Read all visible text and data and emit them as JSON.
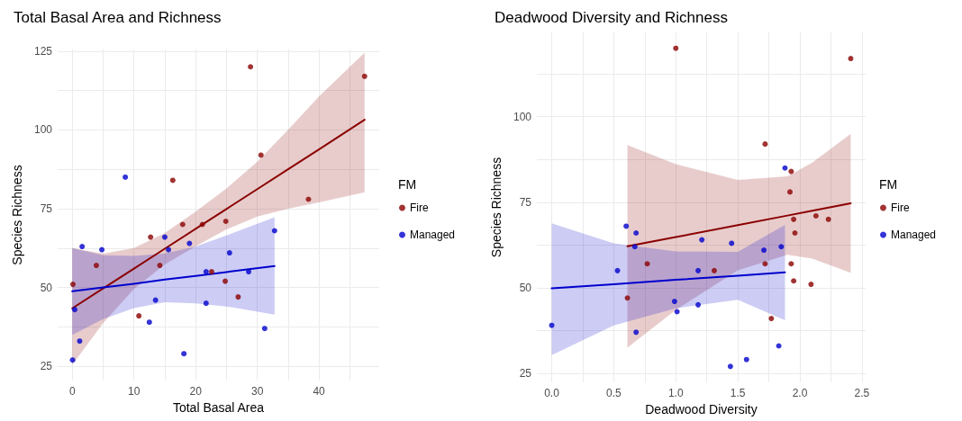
{
  "chart_data": [
    {
      "type": "scatter",
      "title": "Total Basal Area and Richness",
      "xlabel": "Total Basal Area",
      "ylabel": "Species Richness",
      "legend_title": "FM",
      "legend": "right",
      "grid": true,
      "marker": "circle",
      "xlim": [
        -2.37,
        49.77
      ],
      "ylim": [
        20.5,
        125.5
      ],
      "xticks": [
        0,
        {
          "value": 5,
          "label": null
        },
        10,
        {
          "value": 15,
          "label": null
        },
        20,
        {
          "value": 25,
          "label": null
        },
        30,
        {
          "value": 35,
          "label": null
        },
        40,
        {
          "value": 45,
          "label": null
        }
      ],
      "yticks": [
        25,
        {
          "value": 37.5,
          "label": null
        },
        50,
        {
          "value": 62.5,
          "label": null
        },
        75,
        {
          "value": 87.5,
          "label": null
        },
        100,
        {
          "value": 112.5,
          "label": null
        },
        125
      ],
      "series": [
        {
          "name": "Fire",
          "color": "#8b0000",
          "x": [
            0.1,
            3.9,
            12.7,
            14.2,
            16.3,
            17.9,
            21.1,
            22.6,
            24.9,
            24.8,
            26.9,
            28.9,
            30.6,
            38.3,
            47.4,
            10.8
          ],
          "values": [
            51,
            57,
            66,
            57,
            84,
            70,
            70,
            55,
            71,
            52,
            47,
            120,
            92,
            78,
            117,
            41
          ]
        },
        {
          "name": "Managed",
          "color": "#0000cd",
          "x": [
            0.05,
            0.4,
            1.2,
            1.6,
            4.8,
            8.6,
            12.5,
            13.5,
            15.0,
            15.6,
            18.1,
            19.0,
            21.7,
            21.7,
            25.5,
            28.6,
            31.2,
            32.8
          ],
          "values": [
            27,
            43,
            33,
            63,
            62,
            85,
            39,
            46,
            66,
            62,
            29,
            64,
            55,
            45,
            61,
            55,
            37,
            68
          ]
        },
        {
          "type": "line",
          "marker": "none",
          "color": "#8b0000",
          "x": [
            0,
            5,
            10,
            15,
            20,
            25,
            30,
            35,
            40,
            47.4
          ],
          "values": [
            43.4,
            49.7,
            56,
            62.3,
            68.6,
            74.9,
            81.2,
            87.5,
            93.8,
            103.2
          ],
          "lower": [
            25.5,
            38.7,
            49.5,
            57.3,
            63.1,
            68.4,
            72.5,
            75,
            77,
            80.2
          ],
          "upper": [
            62.5,
            60.7,
            62.5,
            67.3,
            74.1,
            81.4,
            89.9,
            100,
            110.6,
            124.5
          ]
        },
        {
          "type": "line",
          "marker": "none",
          "color": "#0000cd",
          "x": [
            0,
            5,
            10,
            15,
            20,
            25,
            32.8
          ],
          "values": [
            48.8,
            50,
            51.2,
            52.5,
            53.7,
            54.9,
            56.8
          ],
          "lower": [
            35,
            40,
            43.5,
            45.3,
            45,
            44,
            41.4
          ],
          "upper": [
            62.5,
            60.2,
            60,
            60.8,
            63,
            66.5,
            72.3
          ]
        }
      ]
    },
    {
      "type": "scatter",
      "title": "Deadwood Diversity and Richness",
      "xlabel": "Deadwood Diversity",
      "ylabel": "Species Richness",
      "legend_title": "FM",
      "legend": "right",
      "grid": true,
      "marker": "circle",
      "xlim": [
        -0.12,
        2.53
      ],
      "ylim": [
        22.35,
        124.65
      ],
      "xticks": [
        {
          "value": 0,
          "label": "0.0"
        },
        {
          "value": 0.25,
          "label": null
        },
        {
          "value": 0.5,
          "label": "0.5"
        },
        {
          "value": 0.75,
          "label": null
        },
        {
          "value": 1,
          "label": "1.0"
        },
        {
          "value": 1.25,
          "label": null
        },
        {
          "value": 1.5,
          "label": "1.5"
        },
        {
          "value": 1.75,
          "label": null
        },
        {
          "value": 2,
          "label": "2.0"
        },
        {
          "value": 2.25,
          "label": null
        },
        {
          "value": 2.5,
          "label": "2.5"
        }
      ],
      "yticks": [
        25,
        {
          "value": 37.5,
          "label": null
        },
        50,
        {
          "value": 62.5,
          "label": null
        },
        75,
        {
          "value": 87.5,
          "label": null
        },
        100,
        {
          "value": 112.5,
          "label": null
        }
      ],
      "series": [
        {
          "name": "Fire",
          "color": "#8b0000",
          "x": [
            1.0,
            2.41,
            1.72,
            1.93,
            1.92,
            1.95,
            2.13,
            2.23,
            1.96,
            0.77,
            1.31,
            1.72,
            1.93,
            1.95,
            2.09,
            0.61,
            1.77
          ],
          "values": [
            120,
            117,
            92,
            84,
            78,
            70,
            71,
            70,
            66,
            57,
            55,
            57,
            57,
            52,
            51,
            47,
            41
          ]
        },
        {
          "name": "Managed",
          "color": "#0000cd",
          "x": [
            0.0,
            0.53,
            0.6,
            0.68,
            0.67,
            0.68,
            0.99,
            1.01,
            1.18,
            1.18,
            1.21,
            1.45,
            1.71,
            1.85,
            1.88,
            1.83,
            1.57,
            1.44
          ],
          "values": [
            39,
            55,
            68,
            66,
            62,
            37,
            46,
            43,
            45,
            55,
            64,
            63,
            61,
            62,
            85,
            33,
            29,
            27
          ]
        },
        {
          "type": "line",
          "marker": "none",
          "color": "#8b0000",
          "x": [
            0.61,
            1.0,
            1.5,
            1.9,
            2.1,
            2.41
          ],
          "values": [
            62.1,
            64.8,
            68.3,
            71.1,
            72.5,
            74.7
          ],
          "lower": [
            32.5,
            43.5,
            55.1,
            59.6,
            58.5,
            54.4
          ],
          "upper": [
            91.7,
            86.1,
            81.5,
            82.6,
            86.6,
            95
          ]
        },
        {
          "type": "line",
          "marker": "none",
          "color": "#0000cd",
          "x": [
            0,
            0.5,
            1.0,
            1.5,
            1.88
          ],
          "values": [
            49.8,
            51,
            52.3,
            53.5,
            54.5
          ],
          "lower": [
            30.3,
            39,
            44,
            46.5,
            40.5
          ],
          "upper": [
            68.8,
            63,
            60.6,
            60.5,
            68.4
          ]
        }
      ]
    }
  ]
}
